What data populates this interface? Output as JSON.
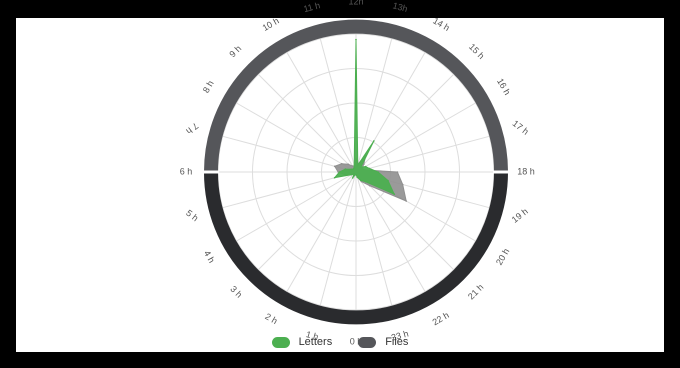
{
  "chart_data": {
    "type": "radar",
    "angle_axis_labels": [
      "12h",
      "13h",
      "14 h",
      "15 h",
      "16 h",
      "17 h",
      "18 h",
      "19 h",
      "20 h",
      "21 h",
      "22 h",
      "23 h",
      "0 h",
      "1 h",
      "2 h",
      "3 h",
      "4 h",
      "5 h",
      "6 h",
      "7 h",
      "8 h",
      "9 h",
      "10 h",
      "11 h"
    ],
    "angle_hours": [
      12,
      13,
      14,
      15,
      16,
      17,
      18,
      19,
      20,
      21,
      22,
      23,
      0,
      1,
      2,
      3,
      4,
      5,
      6,
      7,
      8,
      9,
      10,
      11
    ],
    "rlim": [
      0,
      100
    ],
    "grid": true,
    "series": [
      {
        "name": "Files",
        "color": "#8f8f8f",
        "values": [
          10,
          6,
          14,
          8,
          5,
          6,
          30,
          35,
          42,
          14,
          8,
          4,
          2,
          2,
          3,
          2,
          3,
          8,
          13,
          16,
          12,
          8,
          5,
          3
        ]
      },
      {
        "name": "Letters",
        "color": "#4caf50",
        "values": [
          96,
          5,
          26,
          5,
          8,
          10,
          16,
          24,
          32,
          10,
          7,
          4,
          2,
          2,
          5,
          2,
          4,
          16,
          12,
          8,
          4,
          3,
          3,
          5
        ]
      }
    ],
    "legend": {
      "position": "bottom"
    }
  },
  "colors": {
    "day_ring": "#55565a",
    "night_ring": "#2a2b2e",
    "grid": "#dddddd",
    "label": "#555555"
  }
}
